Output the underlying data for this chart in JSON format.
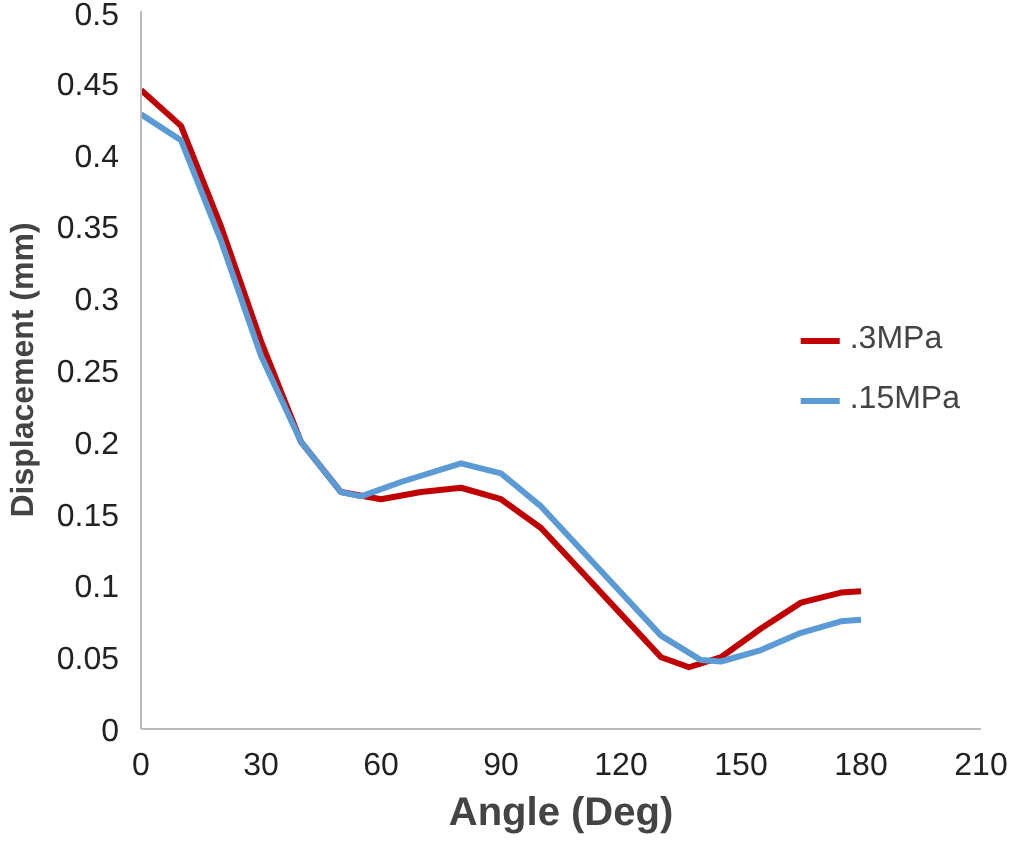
{
  "chart_data": {
    "type": "line",
    "xlabel": "Angle (Deg)",
    "ylabel": "Displacement (mm)",
    "xlim": [
      0,
      210
    ],
    "xticks": [
      0,
      30,
      60,
      90,
      120,
      150,
      180,
      210
    ],
    "ylim": [
      0,
      0.5
    ],
    "yticks": [
      0,
      0.05,
      0.1,
      0.15,
      0.2,
      0.25,
      0.3,
      0.35,
      0.4,
      0.45,
      0.5
    ],
    "grid": false,
    "legend": "right",
    "marker": "none",
    "line_style": "solid",
    "series": [
      {
        "name": ".3MPa",
        "color": "#c00000",
        "x": [
          0,
          10,
          20,
          30,
          40,
          50,
          60,
          70,
          80,
          90,
          100,
          110,
          120,
          130,
          137,
          145,
          155,
          165,
          175,
          180
        ],
        "values": [
          0.445,
          0.42,
          0.35,
          0.27,
          0.2,
          0.165,
          0.16,
          0.165,
          0.168,
          0.16,
          0.14,
          0.11,
          0.08,
          0.05,
          0.043,
          0.05,
          0.07,
          0.088,
          0.095,
          0.096
        ]
      },
      {
        "name": ".15MPa",
        "color": "#5b9bd5",
        "x": [
          0,
          10,
          20,
          30,
          40,
          50,
          55,
          65,
          80,
          90,
          100,
          110,
          120,
          130,
          140,
          145,
          155,
          165,
          175,
          180
        ],
        "values": [
          0.428,
          0.41,
          0.34,
          0.26,
          0.2,
          0.165,
          0.162,
          0.172,
          0.185,
          0.178,
          0.155,
          0.125,
          0.095,
          0.065,
          0.048,
          0.047,
          0.055,
          0.067,
          0.075,
          0.076
        ]
      }
    ]
  }
}
